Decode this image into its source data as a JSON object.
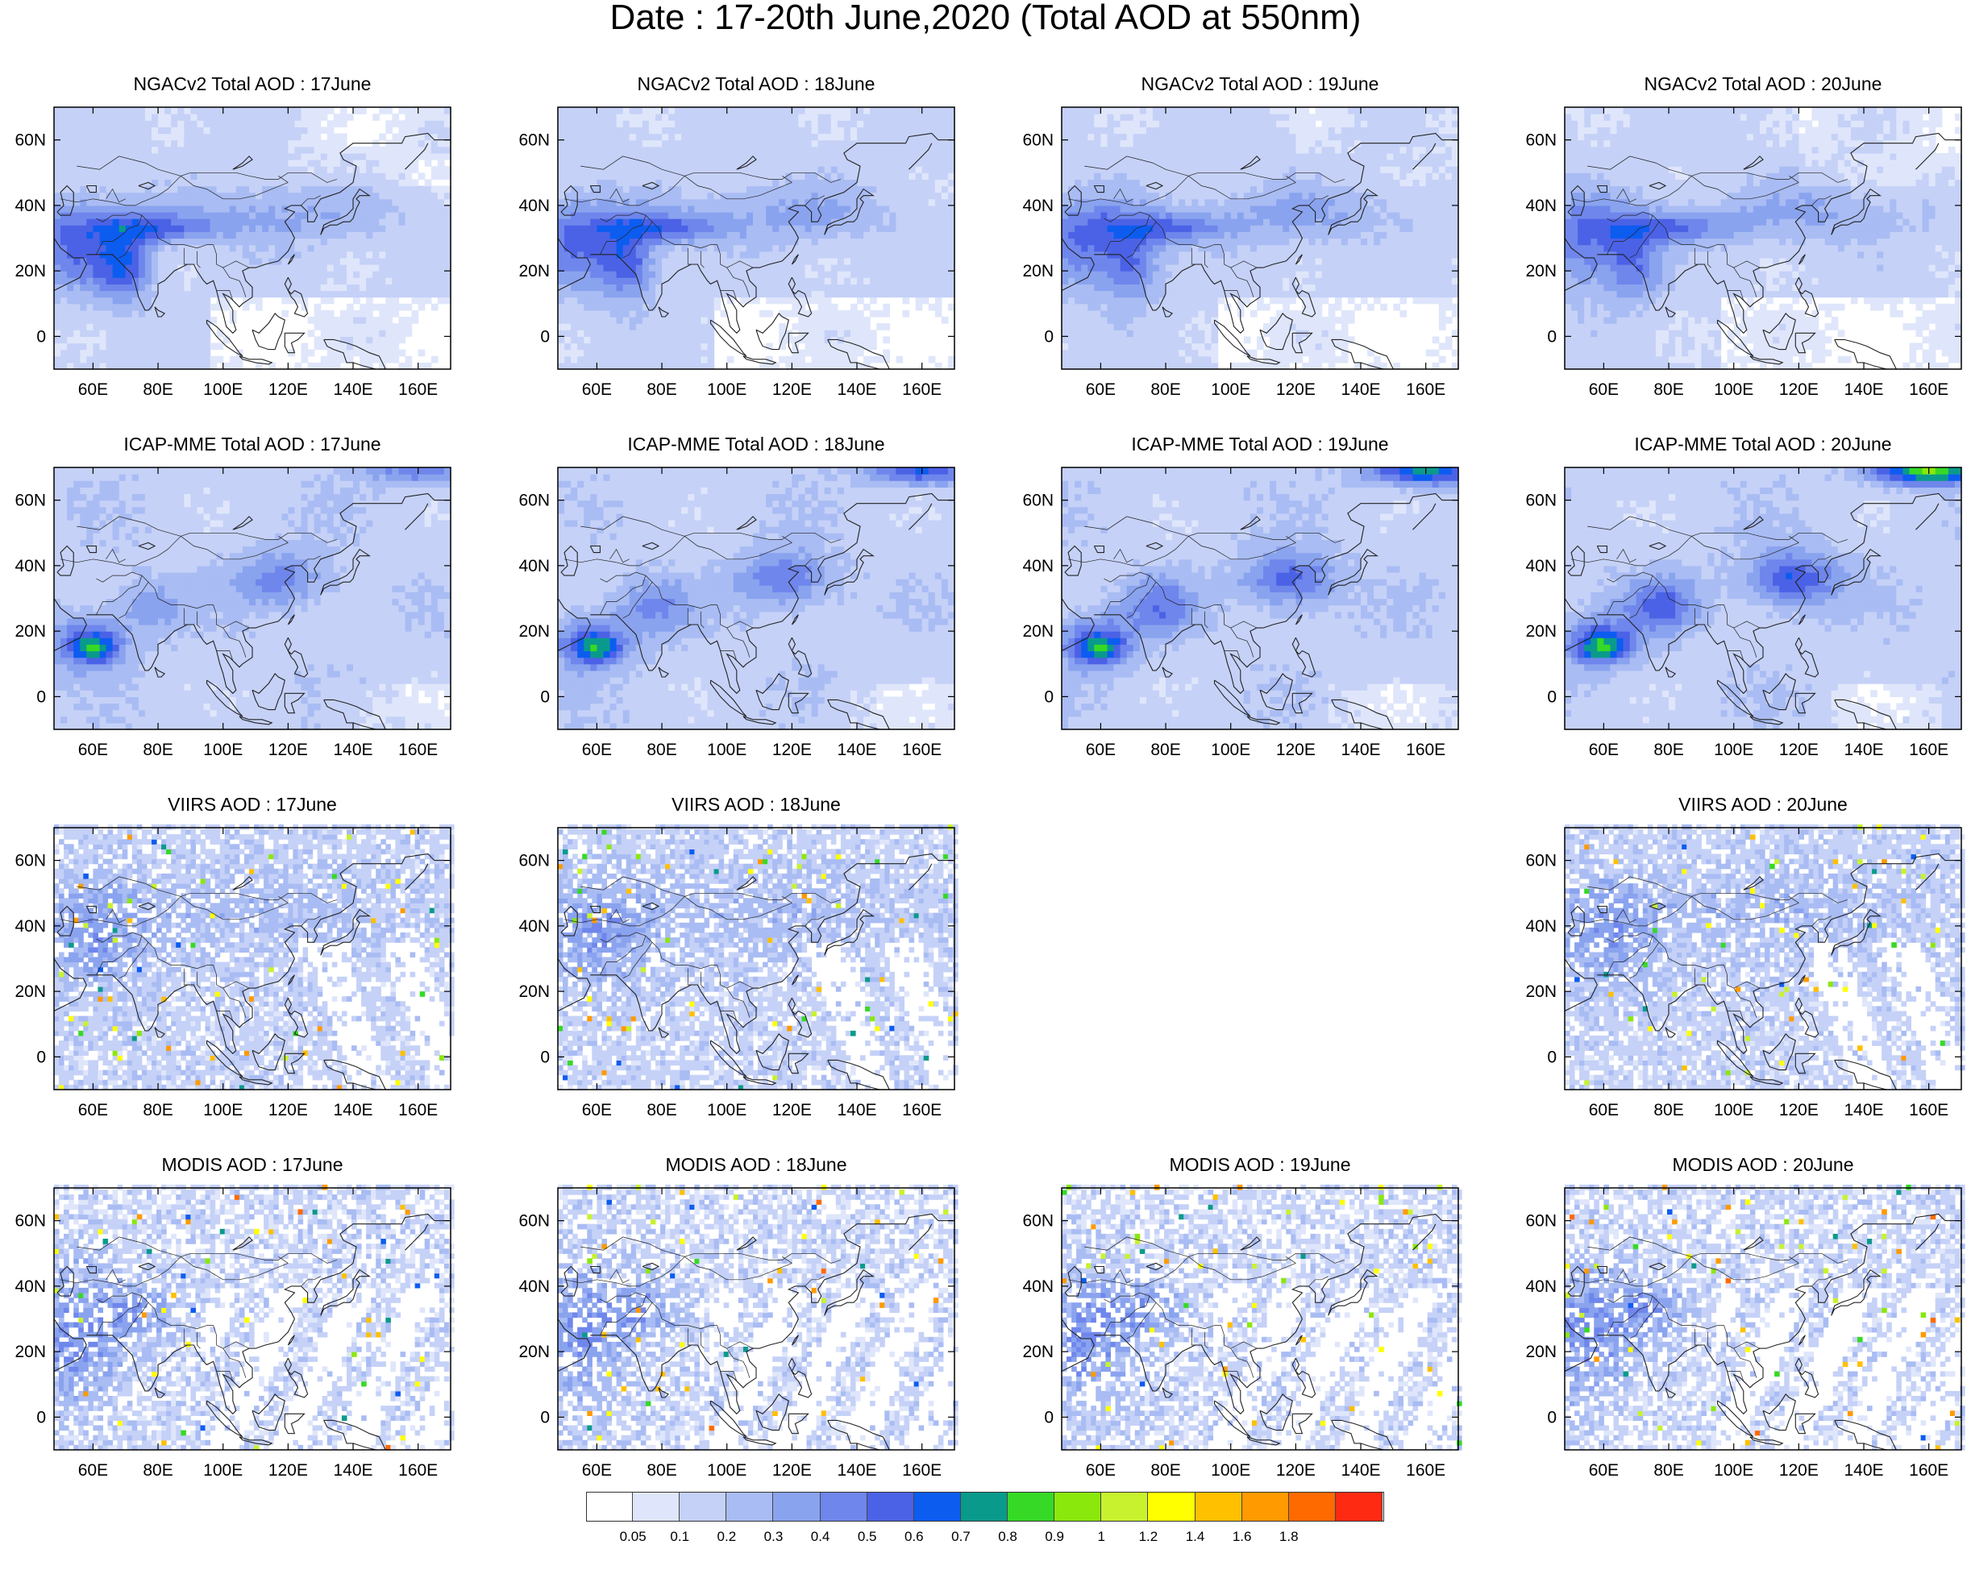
{
  "title": "Date : 17-20th June,2020 (Total AOD at 550nm)",
  "panels": [
    {
      "row": 0,
      "col": 0,
      "title": "NGACv2 Total AOD : 17June",
      "pattern": "model-a",
      "seed": 11
    },
    {
      "row": 0,
      "col": 1,
      "title": "NGACv2 Total AOD : 18June",
      "pattern": "model-a",
      "seed": 12
    },
    {
      "row": 0,
      "col": 2,
      "title": "NGACv2 Total AOD : 19June",
      "pattern": "model-a",
      "seed": 13
    },
    {
      "row": 0,
      "col": 3,
      "title": "NGACv2 Total AOD : 20June",
      "pattern": "model-a",
      "seed": 14
    },
    {
      "row": 1,
      "col": 0,
      "title": "ICAP-MME Total AOD : 17June",
      "pattern": "model-b",
      "seed": 21
    },
    {
      "row": 1,
      "col": 1,
      "title": "ICAP-MME Total AOD : 18June",
      "pattern": "model-b",
      "seed": 22
    },
    {
      "row": 1,
      "col": 2,
      "title": "ICAP-MME Total AOD : 19June",
      "pattern": "model-b",
      "seed": 23
    },
    {
      "row": 1,
      "col": 3,
      "title": "ICAP-MME Total AOD : 20June",
      "pattern": "model-b",
      "seed": 24
    },
    {
      "row": 2,
      "col": 0,
      "title": "VIIRS AOD : 17June",
      "pattern": "sat-a",
      "seed": 31
    },
    {
      "row": 2,
      "col": 1,
      "title": "VIIRS AOD : 18June",
      "pattern": "sat-a",
      "seed": 32
    },
    {
      "row": 2,
      "col": 3,
      "title": "VIIRS AOD : 20June",
      "pattern": "sat-a",
      "seed": 34
    },
    {
      "row": 3,
      "col": 0,
      "title": "MODIS AOD : 17June",
      "pattern": "sat-b",
      "seed": 41
    },
    {
      "row": 3,
      "col": 1,
      "title": "MODIS AOD : 18June",
      "pattern": "sat-b",
      "seed": 42
    },
    {
      "row": 3,
      "col": 2,
      "title": "MODIS AOD : 19June",
      "pattern": "sat-b",
      "seed": 43
    },
    {
      "row": 3,
      "col": 3,
      "title": "MODIS AOD : 20June",
      "pattern": "sat-b",
      "seed": 44
    }
  ],
  "axes": {
    "lon_range": [
      48,
      170
    ],
    "lat_range": [
      -10,
      70
    ],
    "lon_ticks": [
      "60E",
      "80E",
      "100E",
      "120E",
      "140E",
      "160E"
    ],
    "lon_tick_values": [
      60,
      80,
      100,
      120,
      140,
      160
    ],
    "lat_ticks": [
      "0",
      "20N",
      "40N",
      "60N"
    ],
    "lat_tick_values": [
      0,
      20,
      40,
      60
    ]
  },
  "colorbar": {
    "labels": [
      "0.05",
      "0.1",
      "0.2",
      "0.3",
      "0.4",
      "0.5",
      "0.6",
      "0.7",
      "0.8",
      "0.9",
      "1",
      "1.2",
      "1.4",
      "1.6",
      "1.8"
    ],
    "colors": [
      "#ffffff",
      "#dfe6fb",
      "#c5d1f7",
      "#a9bcf3",
      "#8aa3ef",
      "#6f86ec",
      "#4b62e6",
      "#0d5cf0",
      "#0a9a8c",
      "#36d926",
      "#8ae80d",
      "#c8f22e",
      "#ffff00",
      "#ffc000",
      "#ff9a00",
      "#ff6a00",
      "#ff2a12"
    ]
  }
}
